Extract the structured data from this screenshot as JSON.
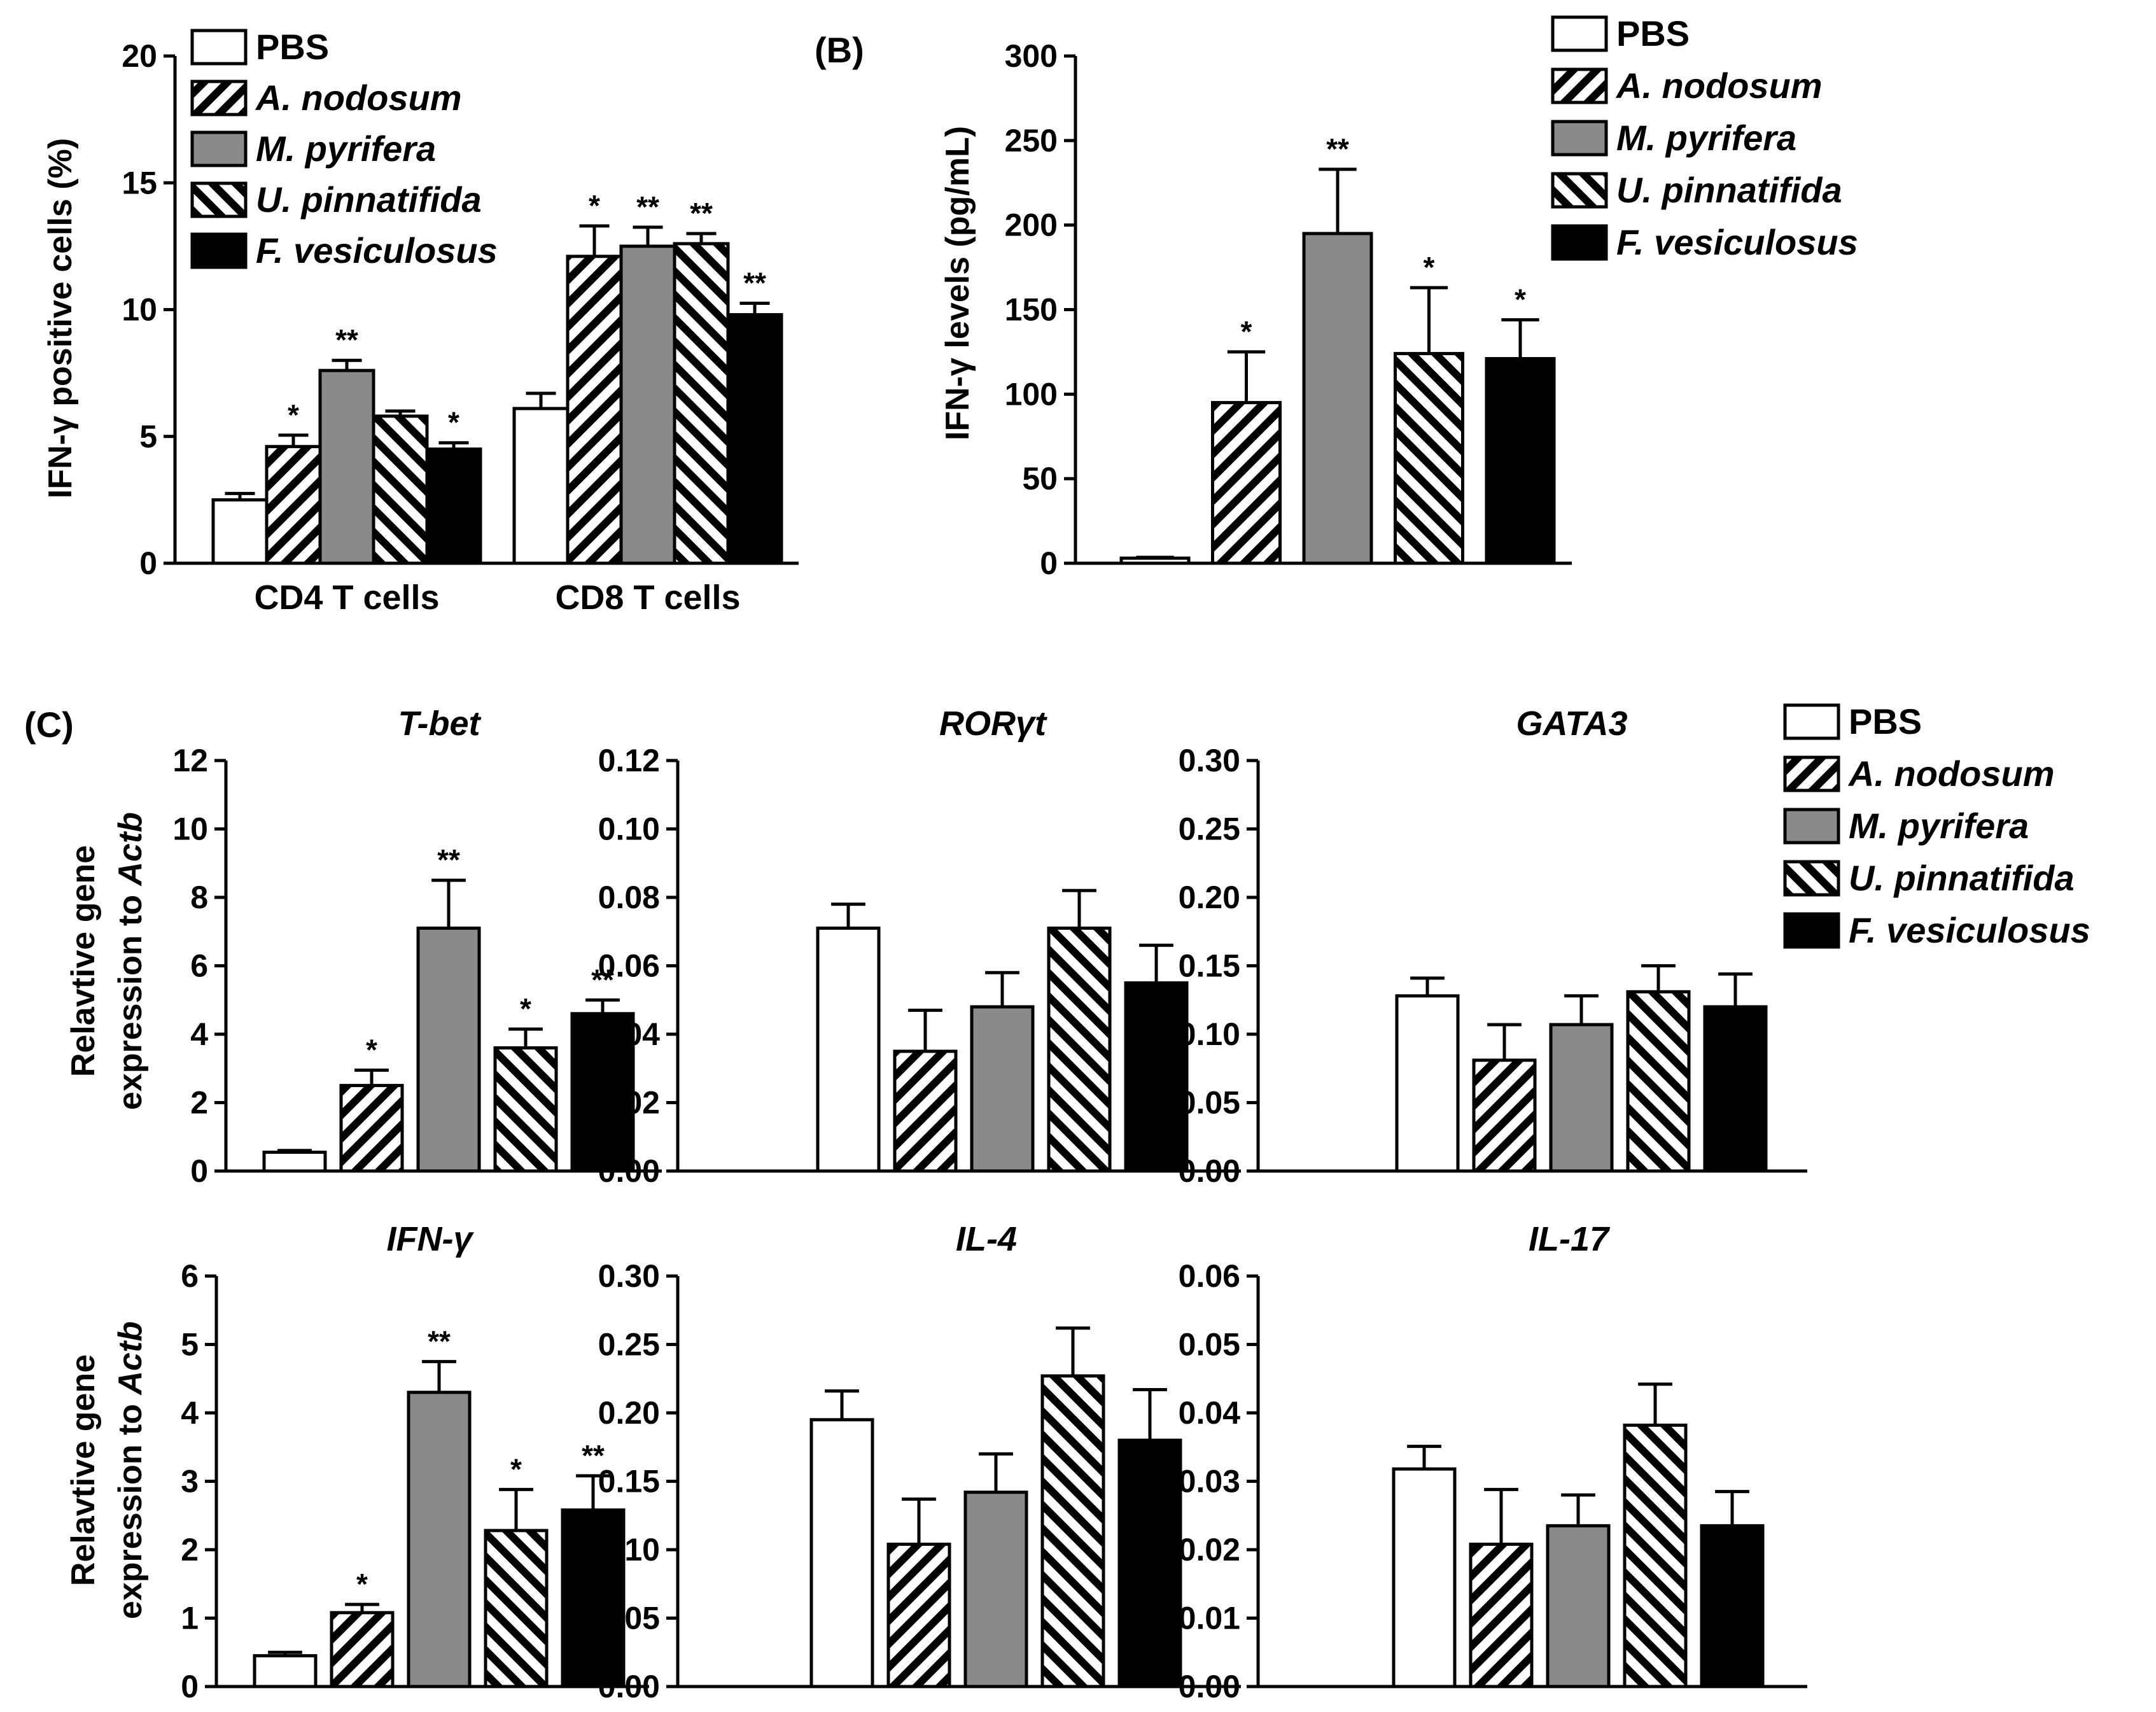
{
  "panel_labels": {
    "B": "(B)",
    "C": "(C)"
  },
  "legend": {
    "labels": [
      "PBS",
      "A. nodosum",
      "M. pyrifera",
      "U. pinnatifida",
      "F. vesiculosus"
    ],
    "italic": [
      false,
      true,
      true,
      true,
      true
    ]
  },
  "fills": {
    "PBS": "#ffffff",
    "A. nodosum": "pattern-fwd",
    "M. pyrifera": "#8a8a8a",
    "U. pinnatifida": "pattern-back",
    "F. vesiculosus": "#000000"
  },
  "charts": {
    "a": {
      "ylabel": "IFN-γ positive cells (%)",
      "ylim": [
        0,
        20
      ],
      "yticks": [
        "0",
        "5",
        "10",
        "15",
        "20"
      ],
      "groups": [
        {
          "label": "CD4 T cells",
          "values": [
            2.5,
            4.6,
            7.6,
            5.8,
            4.5
          ],
          "errors": [
            0.25,
            0.45,
            0.4,
            0.2,
            0.25
          ],
          "sig": [
            "",
            "*",
            "**",
            "",
            "*"
          ]
        },
        {
          "label": "CD8 T cells",
          "values": [
            6.1,
            12.1,
            12.5,
            12.6,
            9.8
          ],
          "errors": [
            0.6,
            1.2,
            0.75,
            0.4,
            0.45
          ],
          "sig": [
            "",
            "*",
            "**",
            "**",
            "**"
          ]
        }
      ]
    },
    "b": {
      "ylabel": "IFN-γ levels (pg/mL)",
      "ylim": [
        0,
        300
      ],
      "yticks": [
        "0",
        "50",
        "100",
        "150",
        "200",
        "250",
        "300"
      ],
      "values": [
        3,
        95,
        195,
        124,
        121
      ],
      "errors": [
        0.5,
        30,
        38,
        39,
        23
      ],
      "sig": [
        "",
        "*",
        "**",
        "*",
        "*"
      ]
    },
    "c": [
      {
        "gene": "T-bet",
        "ylim": [
          0,
          12
        ],
        "yticks": [
          "0",
          "2",
          "4",
          "6",
          "8",
          "10",
          "12"
        ],
        "values": [
          0.55,
          2.5,
          7.1,
          3.6,
          4.6
        ],
        "errors": [
          0.05,
          0.45,
          1.4,
          0.55,
          0.4
        ],
        "sig": [
          "",
          "*",
          "**",
          "*",
          "**"
        ]
      },
      {
        "gene": "RORγt",
        "ylim": [
          0,
          0.12
        ],
        "yticks": [
          "0.00",
          "0.02",
          "0.04",
          "0.06",
          "0.08",
          "0.10",
          "0.12"
        ],
        "values": [
          0.071,
          0.035,
          0.048,
          0.071,
          0.055
        ],
        "errors": [
          0.007,
          0.012,
          0.01,
          0.011,
          0.011
        ],
        "sig": [
          "",
          "",
          "",
          "",
          ""
        ]
      },
      {
        "gene": "GATA3",
        "ylim": [
          0,
          0.3
        ],
        "yticks": [
          "0.00",
          "0.05",
          "0.10",
          "0.15",
          "0.20",
          "0.25",
          "0.30"
        ],
        "values": [
          0.128,
          0.081,
          0.107,
          0.131,
          0.12
        ],
        "errors": [
          0.013,
          0.026,
          0.021,
          0.019,
          0.024
        ],
        "sig": [
          "",
          "",
          "",
          "",
          ""
        ]
      },
      {
        "gene": "IFN-γ",
        "ylim": [
          0,
          6
        ],
        "yticks": [
          "0",
          "1",
          "2",
          "3",
          "4",
          "5",
          "6"
        ],
        "values": [
          0.45,
          1.08,
          4.3,
          2.28,
          2.58
        ],
        "errors": [
          0.05,
          0.12,
          0.45,
          0.6,
          0.5
        ],
        "sig": [
          "",
          "*",
          "**",
          "*",
          "**"
        ]
      },
      {
        "gene": "IL-4",
        "ylim": [
          0,
          0.3
        ],
        "yticks": [
          "0.00",
          "0.05",
          "0.10",
          "0.15",
          "0.20",
          "0.25",
          "0.30"
        ],
        "values": [
          0.195,
          0.104,
          0.142,
          0.227,
          0.18
        ],
        "errors": [
          0.021,
          0.033,
          0.028,
          0.035,
          0.037
        ],
        "sig": [
          "",
          "",
          "",
          "",
          ""
        ]
      },
      {
        "gene": "IL-17",
        "ylim": [
          0,
          0.06
        ],
        "yticks": [
          "0.00",
          "0.01",
          "0.02",
          "0.03",
          "0.04",
          "0.05",
          "0.06"
        ],
        "values": [
          0.0318,
          0.0208,
          0.0235,
          0.0382,
          0.0235
        ],
        "errors": [
          0.0033,
          0.008,
          0.0045,
          0.006,
          0.005
        ],
        "sig": [
          "",
          "",
          "",
          "",
          ""
        ]
      }
    ],
    "c_ylabel": [
      "Relavtive gene",
      "expression to ",
      "Actb"
    ]
  },
  "chart_data": [
    {
      "type": "bar",
      "ylabel": "IFN-γ positive cells (%)",
      "categories": [
        "CD4 T cells",
        "CD8 T cells"
      ],
      "ylim": [
        0,
        20
      ],
      "series": [
        {
          "name": "PBS",
          "values": [
            2.5,
            6.1
          ]
        },
        {
          "name": "A. nodosum",
          "values": [
            4.6,
            12.1
          ]
        },
        {
          "name": "M. pyrifera",
          "values": [
            7.6,
            12.5
          ]
        },
        {
          "name": "U. pinnatifida",
          "values": [
            5.8,
            12.6
          ]
        },
        {
          "name": "F. vesiculosus",
          "values": [
            4.5,
            9.8
          ]
        }
      ]
    },
    {
      "type": "bar",
      "title": "(B)",
      "ylabel": "IFN-γ levels (pg/mL)",
      "categories": [
        "PBS",
        "A. nodosum",
        "M. pyrifera",
        "U. pinnatifida",
        "F. vesiculosus"
      ],
      "values": [
        3,
        95,
        195,
        124,
        121
      ],
      "ylim": [
        0,
        300
      ]
    },
    {
      "type": "bar",
      "title": "T-bet",
      "categories": [
        "PBS",
        "A. nodosum",
        "M. pyrifera",
        "U. pinnatifida",
        "F. vesiculosus"
      ],
      "values": [
        0.55,
        2.5,
        7.1,
        3.6,
        4.6
      ],
      "ylim": [
        0,
        12
      ]
    },
    {
      "type": "bar",
      "title": "RORγt",
      "categories": [
        "PBS",
        "A. nodosum",
        "M. pyrifera",
        "U. pinnatifida",
        "F. vesiculosus"
      ],
      "values": [
        0.071,
        0.035,
        0.048,
        0.071,
        0.055
      ],
      "ylim": [
        0,
        0.12
      ]
    },
    {
      "type": "bar",
      "title": "GATA3",
      "categories": [
        "PBS",
        "A. nodosum",
        "M. pyrifera",
        "U. pinnatifida",
        "F. vesiculosus"
      ],
      "values": [
        0.128,
        0.081,
        0.107,
        0.131,
        0.12
      ],
      "ylim": [
        0,
        0.3
      ]
    },
    {
      "type": "bar",
      "title": "IFN-γ",
      "categories": [
        "PBS",
        "A. nodosum",
        "M. pyrifera",
        "U. pinnatifida",
        "F. vesiculosus"
      ],
      "values": [
        0.45,
        1.08,
        4.3,
        2.28,
        2.58
      ],
      "ylim": [
        0,
        6
      ]
    },
    {
      "type": "bar",
      "title": "IL-4",
      "categories": [
        "PBS",
        "A. nodosum",
        "M. pyrifera",
        "U. pinnatifida",
        "F. vesiculosus"
      ],
      "values": [
        0.195,
        0.104,
        0.142,
        0.227,
        0.18
      ],
      "ylim": [
        0,
        0.3
      ]
    },
    {
      "type": "bar",
      "title": "IL-17",
      "categories": [
        "PBS",
        "A. nodosum",
        "M. pyrifera",
        "U. pinnatifida",
        "F. vesiculosus"
      ],
      "values": [
        0.0318,
        0.0208,
        0.0235,
        0.0382,
        0.0235
      ],
      "ylim": [
        0,
        0.06
      ]
    }
  ]
}
